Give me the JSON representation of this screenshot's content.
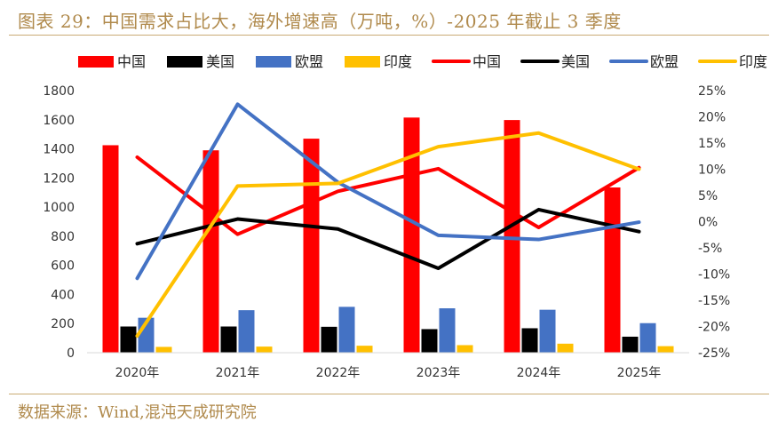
{
  "figure": {
    "title": "图表 29：中国需求占比大，海外增速高（万吨，%）-2025 年截止 3 季度",
    "source": "数据来源：Wind,混沌天成研究院"
  },
  "chart_data": {
    "type": "bar",
    "categories": [
      "2020年",
      "2021年",
      "2022年",
      "2023年",
      "2024年",
      "2025年"
    ],
    "left_axis": {
      "min": 0,
      "max": 1800,
      "step": 200,
      "ticks": [
        "0",
        "200",
        "400",
        "600",
        "800",
        "1000",
        "1200",
        "1400",
        "1600",
        "1800"
      ]
    },
    "right_axis": {
      "min": -25,
      "max": 25,
      "step": 5,
      "ticks": [
        "-25%",
        "-20%",
        "-15%",
        "-10%",
        "-5%",
        "0%",
        "5%",
        "10%",
        "15%",
        "20%",
        "25%"
      ]
    },
    "series": [
      {
        "name": "中国",
        "kind": "bar",
        "axis": "left",
        "color": "#ff0000",
        "values": [
          1425,
          1390,
          1470,
          1615,
          1598,
          1135
        ]
      },
      {
        "name": "美国",
        "kind": "bar",
        "axis": "left",
        "color": "#000000",
        "values": [
          180,
          180,
          178,
          162,
          168,
          110
        ]
      },
      {
        "name": "欧盟",
        "kind": "bar",
        "axis": "left",
        "color": "#4472c4",
        "values": [
          240,
          292,
          315,
          305,
          295,
          203
        ]
      },
      {
        "name": "印度",
        "kind": "bar",
        "axis": "left",
        "color": "#ffc000",
        "values": [
          40,
          42,
          48,
          52,
          62,
          45
        ]
      },
      {
        "name": "中国",
        "kind": "line",
        "axis": "right",
        "color": "#ff0000",
        "values": [
          12.3,
          -2.4,
          5.8,
          10.1,
          -1.1,
          10.3
        ]
      },
      {
        "name": "美国",
        "kind": "line",
        "axis": "right",
        "color": "#000000",
        "values": [
          -4.2,
          0.5,
          -1.4,
          -8.9,
          2.3,
          -1.9
        ]
      },
      {
        "name": "欧盟",
        "kind": "line",
        "axis": "right",
        "color": "#4472c4",
        "values": [
          -10.8,
          22.4,
          7.5,
          -2.6,
          -3.4,
          -0.1
        ]
      },
      {
        "name": "印度",
        "kind": "line",
        "axis": "right",
        "color": "#ffc000",
        "values": [
          -21.8,
          6.8,
          7.3,
          14.3,
          16.9,
          10.0
        ]
      }
    ],
    "legend_position": "top",
    "grid": false
  }
}
